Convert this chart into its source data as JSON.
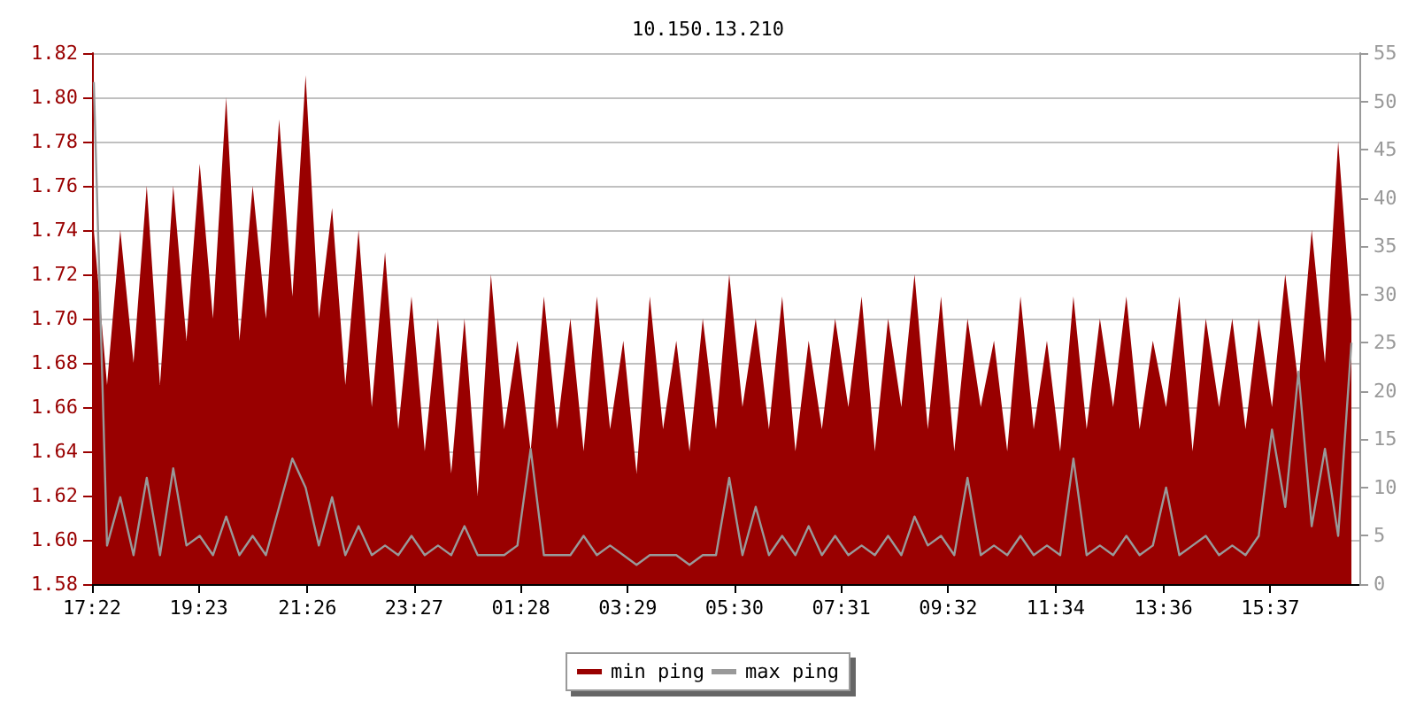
{
  "chart_data": {
    "type": "area",
    "title": "10.150.13.210",
    "x": [
      "--01-01T17:24",
      "--01-01T17:39",
      "--01-01T17:54",
      "--01-01T18:09",
      "--01-01T18:24",
      "--01-01T18:39",
      "--01-01T18:54",
      "--01-01T19:09",
      "--01-01T19:24",
      "--01-01T19:39",
      "--01-01T19:54",
      "--01-01T20:09",
      "--01-01T20:24",
      "--01-01T20:39",
      "--01-01T20:54",
      "--01-01T21:09",
      "--01-01T21:24",
      "--01-01T21:39",
      "--01-01T21:54",
      "--01-01T22:09",
      "--01-01T22:24",
      "--01-01T22:39",
      "--01-01T22:54",
      "--01-01T23:09",
      "--01-01T23:24",
      "--01-01T23:39",
      "--01-01T23:54",
      "--01-02T00:09",
      "--01-02T00:24",
      "--01-02T00:39",
      "--01-02T00:54",
      "--01-02T01:09",
      "--01-02T01:24",
      "--01-02T01:39",
      "--01-02T01:54",
      "--01-02T02:09",
      "--01-02T02:24",
      "--01-02T02:39",
      "--01-02T02:54",
      "--01-02T03:09",
      "--01-02T03:24",
      "--01-02T03:39",
      "--01-02T03:54",
      "--01-02T04:09",
      "--01-02T04:24",
      "--01-02T04:39",
      "--01-02T04:54",
      "--01-02T05:09",
      "--01-02T05:24",
      "--01-02T05:39",
      "--01-02T05:54",
      "--01-02T06:09",
      "--01-02T06:24",
      "--01-02T06:39",
      "--01-02T06:54",
      "--01-02T07:09",
      "--01-02T07:24",
      "--01-02T07:39",
      "--01-02T07:54",
      "--01-02T08:09",
      "--01-02T08:24",
      "--01-02T08:39",
      "--01-02T08:54",
      "--01-02T09:09",
      "--01-02T09:24",
      "--01-02T09:39",
      "--01-02T09:54",
      "--01-02T10:09",
      "--01-02T10:24",
      "--01-02T10:39",
      "--01-02T10:54",
      "--01-02T11:09",
      "--01-02T11:24",
      "--01-02T11:39",
      "--01-02T11:54",
      "--01-02T12:09",
      "--01-02T12:24",
      "--01-02T12:39",
      "--01-02T12:54",
      "--01-02T13:09",
      "--01-02T13:24",
      "--01-02T13:39",
      "--01-02T13:54",
      "--01-02T14:09",
      "--01-02T14:24",
      "--01-02T14:39",
      "--01-02T14:54",
      "--01-02T15:09",
      "--01-02T15:24",
      "--01-02T15:39",
      "--01-02T15:54",
      "--01-02T16:09",
      "--01-02T16:24",
      "--01-02T16:39",
      "--01-02T16:54",
      "--01-02T17:09"
    ],
    "series": [
      {
        "name": "min ping",
        "color": "#990000",
        "values": [
          1.74,
          1.67,
          1.74,
          1.68,
          1.76,
          1.67,
          1.76,
          1.69,
          1.77,
          1.7,
          1.8,
          1.69,
          1.76,
          1.7,
          1.79,
          1.71,
          1.81,
          1.7,
          1.75,
          1.67,
          1.74,
          1.66,
          1.73,
          1.65,
          1.71,
          1.64,
          1.7,
          1.63,
          1.7,
          1.62,
          1.72,
          1.65,
          1.69,
          1.64,
          1.71,
          1.65,
          1.7,
          1.64,
          1.71,
          1.65,
          1.69,
          1.63,
          1.71,
          1.65,
          1.69,
          1.64,
          1.7,
          1.65,
          1.72,
          1.66,
          1.7,
          1.65,
          1.71,
          1.64,
          1.69,
          1.65,
          1.7,
          1.66,
          1.71,
          1.64,
          1.7,
          1.66,
          1.72,
          1.65,
          1.71,
          1.64,
          1.7,
          1.66,
          1.69,
          1.64,
          1.71,
          1.65,
          1.69,
          1.64,
          1.71,
          1.65,
          1.7,
          1.66,
          1.71,
          1.65,
          1.69,
          1.66,
          1.71,
          1.64,
          1.7,
          1.66,
          1.7,
          1.65,
          1.7,
          1.66,
          1.72,
          1.67,
          1.74,
          1.68,
          1.78,
          1.7
        ]
      },
      {
        "name": "max ping",
        "type": "line",
        "axis": "y2",
        "color": "#999999",
        "values": [
          52,
          4,
          9,
          3,
          11,
          3,
          12,
          4,
          5,
          3,
          7,
          3,
          5,
          3,
          8,
          13,
          10,
          4,
          9,
          3,
          6,
          3,
          4,
          3,
          5,
          3,
          4,
          3,
          6,
          3,
          3,
          3,
          4,
          14,
          3,
          3,
          3,
          5,
          3,
          4,
          3,
          2,
          3,
          3,
          3,
          2,
          3,
          3,
          11,
          3,
          8,
          3,
          5,
          3,
          6,
          3,
          5,
          3,
          4,
          3,
          5,
          3,
          7,
          4,
          5,
          3,
          11,
          3,
          4,
          3,
          5,
          3,
          4,
          3,
          13,
          3,
          4,
          3,
          5,
          3,
          4,
          10,
          3,
          4,
          5,
          3,
          4,
          3,
          5,
          16,
          8,
          22,
          6,
          14,
          5,
          25
        ]
      }
    ],
    "xlim": [
      "--01-01T17:22",
      "--01-02T17:18"
    ],
    "xticks": [
      {
        "value": "--01-01T17:22",
        "label": "17:22"
      },
      {
        "value": "--01-01T19:23",
        "label": "19:23"
      },
      {
        "value": "--01-01T21:26",
        "label": "21:26"
      },
      {
        "value": "--01-01T23:27",
        "label": "23:27"
      },
      {
        "value": "--01-02T01:28",
        "label": "01:28"
      },
      {
        "value": "--01-02T03:29",
        "label": "03:29"
      },
      {
        "value": "--01-02T05:30",
        "label": "05:30"
      },
      {
        "value": "--01-02T07:31",
        "label": "07:31"
      },
      {
        "value": "--01-02T09:32",
        "label": "09:32"
      },
      {
        "value": "--01-02T11:34",
        "label": "11:34"
      },
      {
        "value": "--01-02T13:36",
        "label": "13:36"
      },
      {
        "value": "--01-02T15:37",
        "label": "15:37"
      }
    ],
    "ylim": [
      1.58,
      1.82
    ],
    "yticks": [
      {
        "value": 1.58,
        "label": "1.58"
      },
      {
        "value": 1.6,
        "label": "1.60"
      },
      {
        "value": 1.62,
        "label": "1.62"
      },
      {
        "value": 1.64,
        "label": "1.64"
      },
      {
        "value": 1.66,
        "label": "1.66"
      },
      {
        "value": 1.68,
        "label": "1.68"
      },
      {
        "value": 1.7,
        "label": "1.70"
      },
      {
        "value": 1.72,
        "label": "1.72"
      },
      {
        "value": 1.74,
        "label": "1.74"
      },
      {
        "value": 1.76,
        "label": "1.76"
      },
      {
        "value": 1.78,
        "label": "1.78"
      },
      {
        "value": 1.8,
        "label": "1.80"
      },
      {
        "value": 1.82,
        "label": "1.82"
      }
    ],
    "y2lim": [
      0,
      55
    ],
    "y2ticks": [
      0,
      5,
      10,
      15,
      20,
      25,
      30,
      35,
      40,
      45,
      50,
      55
    ],
    "grid": "y",
    "legend": "bottom",
    "marker": "none",
    "line_style": "solid"
  }
}
